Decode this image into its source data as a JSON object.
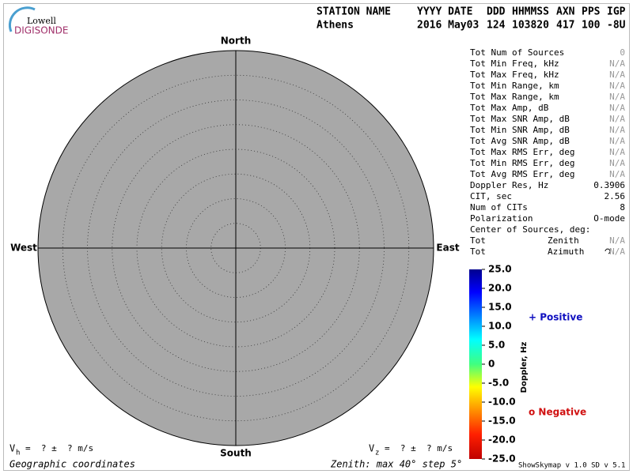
{
  "logo": {
    "line1": "Lowell",
    "line2": "DIGISONDE"
  },
  "header": {
    "columns": [
      "STATION NAME",
      "YYYY DATE",
      "DDD",
      "HHMMSS",
      "AXN",
      "PPS",
      "IGP"
    ],
    "values": [
      "Athens",
      "2016 May03",
      "124",
      "103820",
      "417",
      "100",
      "-8U"
    ]
  },
  "compass": {
    "north": "North",
    "south": "South",
    "west": "West",
    "east": "East"
  },
  "stats": [
    [
      "Tot Num of Sources",
      "0"
    ],
    [
      "Tot Min Freq, kHz",
      "N/A"
    ],
    [
      "Tot Max Freq, kHz",
      "N/A"
    ],
    [
      "Tot Min Range, km",
      "N/A"
    ],
    [
      "Tot Max Range, km",
      "N/A"
    ],
    [
      "Tot Max Amp, dB",
      "N/A"
    ],
    [
      "Tot Max SNR Amp, dB",
      "N/A"
    ],
    [
      "Tot Min SNR Amp, dB",
      "N/A"
    ],
    [
      "Tot Avg SNR Amp, dB",
      "N/A"
    ],
    [
      "Tot Max RMS Err, deg",
      "N/A"
    ],
    [
      "Tot Min RMS Err, deg",
      "N/A"
    ],
    [
      "Tot Avg RMS Err, deg",
      "N/A"
    ],
    [
      "Doppler Res, Hz",
      "0.3906"
    ],
    [
      "CIT, sec",
      "2.56"
    ],
    [
      "Num of CITs",
      "8"
    ],
    [
      "Polarization",
      "O-mode"
    ]
  ],
  "center": {
    "title": "Center of Sources, deg:",
    "rows": [
      [
        "Tot",
        "Zenith",
        "N/A"
      ],
      [
        "Tot",
        "Azimuth",
        "N/A"
      ]
    ]
  },
  "colorbar": {
    "title": "Doppler, Hz",
    "labels": [
      "25.0",
      "20.0",
      "15.0",
      "10.0",
      "5.0",
      "0",
      "-5.0",
      "-10.0",
      "-15.0",
      "-20.0",
      "-25.0"
    ]
  },
  "legend": {
    "positive": "+ Positive",
    "negative": "o Negative"
  },
  "footer": {
    "vh": [
      "V",
      "h",
      "=  ? ±  ? m/s"
    ],
    "vz": [
      "V",
      "z",
      "=  ? ±  ? m/s"
    ],
    "coordinates": "Geographic coordinates",
    "zenith": "Zenith: max 40°  step 5°",
    "version": "ShowSkymap v 1.0  SD v 5.1"
  }
}
